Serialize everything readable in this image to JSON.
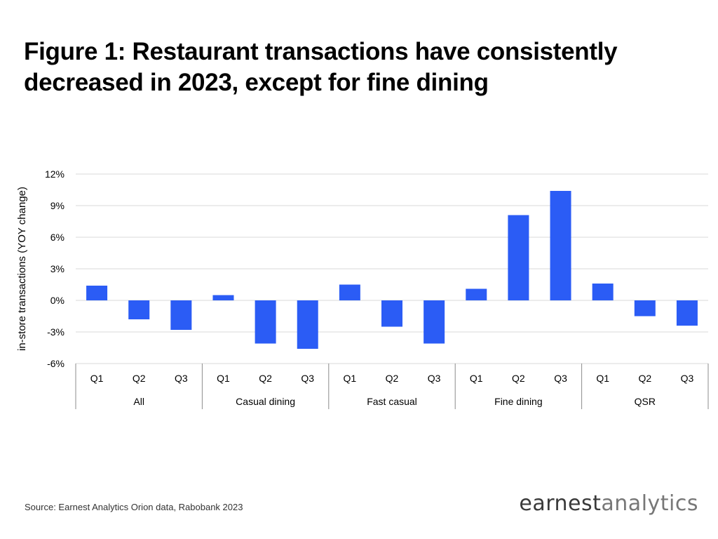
{
  "title_lines": [
    "Figure 1: Restaurant transactions have consistently",
    "decreased in 2023, except for fine dining"
  ],
  "source": "Source: Earnest Analytics Orion data, Rabobank 2023",
  "logo": {
    "word1": "earnest",
    "word2": "analytics"
  },
  "colors": {
    "bar": "#2b5cf5",
    "grid": "#d9d9d9",
    "axis": "#8c8c8c"
  },
  "chart_data": {
    "type": "bar",
    "ylabel": "in-store transactions (YOY change)",
    "xlabel": "",
    "ylim": [
      -6,
      12
    ],
    "yticks": [
      12,
      9,
      6,
      3,
      0,
      -3,
      -6
    ],
    "ytick_labels": [
      "12%",
      "9%",
      "6%",
      "3%",
      "0%",
      "-3%",
      "-6%"
    ],
    "grid": true,
    "groups": [
      {
        "name": "All",
        "categories": [
          "Q1",
          "Q2",
          "Q3"
        ],
        "values": [
          1.4,
          -1.8,
          -2.8
        ]
      },
      {
        "name": "Casual dining",
        "categories": [
          "Q1",
          "Q2",
          "Q3"
        ],
        "values": [
          0.5,
          -4.1,
          -4.6
        ]
      },
      {
        "name": "Fast casual",
        "categories": [
          "Q1",
          "Q2",
          "Q3"
        ],
        "values": [
          1.5,
          -2.5,
          -4.1
        ]
      },
      {
        "name": "Fine dining",
        "categories": [
          "Q1",
          "Q2",
          "Q3"
        ],
        "values": [
          1.1,
          8.1,
          10.4
        ]
      },
      {
        "name": "QSR",
        "categories": [
          "Q1",
          "Q2",
          "Q3"
        ],
        "values": [
          1.6,
          -1.5,
          -2.4
        ]
      }
    ]
  }
}
